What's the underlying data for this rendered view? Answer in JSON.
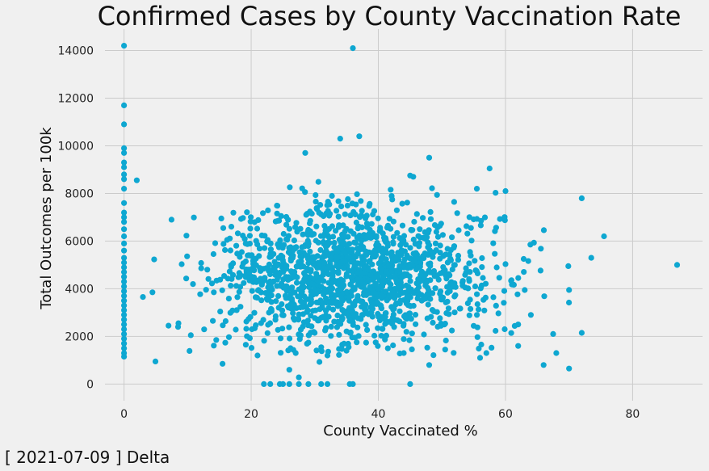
{
  "chart_data": {
    "type": "scatter",
    "title": "Confirmed Cases by County Vaccination Rate",
    "xlabel": "County Vaccinated %",
    "ylabel": "Total Outcomes per 100k",
    "xlim": [
      -3,
      91
    ],
    "ylim": [
      -700,
      14900
    ],
    "xticks": [
      0,
      20,
      40,
      60,
      80
    ],
    "yticks": [
      0,
      2000,
      4000,
      6000,
      8000,
      10000,
      12000,
      14000
    ],
    "grid": true,
    "point_color": "#0ea7d1",
    "footnote": "[ 2021-07-09 ] Delta",
    "points_explicit": [
      [
        0,
        14200
      ],
      [
        0,
        11700
      ],
      [
        0,
        10900
      ],
      [
        0,
        9900
      ],
      [
        0,
        9700
      ],
      [
        0,
        9300
      ],
      [
        0,
        9100
      ],
      [
        0,
        8800
      ],
      [
        0,
        8600
      ],
      [
        0,
        8200
      ],
      [
        0,
        7600
      ],
      [
        0,
        7200
      ],
      [
        0,
        7000
      ],
      [
        0,
        6800
      ],
      [
        0,
        6500
      ],
      [
        0,
        6200
      ],
      [
        0,
        5900
      ],
      [
        0,
        5600
      ],
      [
        0,
        5300
      ],
      [
        0,
        5100
      ],
      [
        0,
        4900
      ],
      [
        0,
        4700
      ],
      [
        0,
        4500
      ],
      [
        0,
        4300
      ],
      [
        0,
        4100
      ],
      [
        0,
        3900
      ],
      [
        0,
        3700
      ],
      [
        0,
        3500
      ],
      [
        0,
        3300
      ],
      [
        0,
        3100
      ],
      [
        0,
        2900
      ],
      [
        0,
        2700
      ],
      [
        0,
        2500
      ],
      [
        0,
        2300
      ],
      [
        0,
        2100
      ],
      [
        0,
        1900
      ],
      [
        0,
        1700
      ],
      [
        0,
        1500
      ],
      [
        0,
        1300
      ],
      [
        0,
        1150
      ],
      [
        36,
        14100
      ],
      [
        37,
        10400
      ],
      [
        34,
        10300
      ],
      [
        28.5,
        9700
      ],
      [
        48,
        9500
      ],
      [
        57.5,
        9050
      ],
      [
        60,
        8100
      ],
      [
        55.5,
        8200
      ],
      [
        45,
        8750
      ],
      [
        45.5,
        8700
      ],
      [
        2,
        8550
      ],
      [
        72,
        7800
      ],
      [
        75.5,
        6200
      ],
      [
        87,
        5000
      ],
      [
        73.5,
        5300
      ],
      [
        70,
        3950
      ],
      [
        72,
        2150
      ],
      [
        70,
        650
      ],
      [
        66,
        800
      ],
      [
        68,
        1300
      ],
      [
        67.5,
        2100
      ],
      [
        64,
        2900
      ],
      [
        62,
        2500
      ],
      [
        62,
        1600
      ],
      [
        56,
        1100
      ],
      [
        57,
        1300
      ],
      [
        48,
        800
      ],
      [
        44,
        1300
      ],
      [
        41.5,
        1500
      ],
      [
        35,
        1400
      ],
      [
        32,
        1200
      ],
      [
        27,
        1300
      ],
      [
        26,
        600
      ],
      [
        21,
        1200
      ],
      [
        15.5,
        850
      ],
      [
        14.5,
        1850
      ],
      [
        10.5,
        2050
      ],
      [
        8.5,
        2400
      ],
      [
        7,
        2450
      ],
      [
        22,
        0
      ],
      [
        23,
        0
      ],
      [
        24.5,
        0
      ],
      [
        25,
        0
      ],
      [
        26,
        0
      ],
      [
        27.5,
        0
      ],
      [
        29,
        0
      ],
      [
        31,
        0
      ],
      [
        32,
        0
      ],
      [
        35.5,
        0
      ],
      [
        36,
        0
      ],
      [
        45,
        0
      ],
      [
        27.5,
        280
      ]
    ],
    "generated_cloud": {
      "count": 1500,
      "seed": 7,
      "x_center": 36,
      "x_spread": 11,
      "y_center": 4500,
      "y_spread": 1450,
      "x_min": 1,
      "x_max": 70,
      "y_min": 900,
      "y_max": 8600
    }
  }
}
